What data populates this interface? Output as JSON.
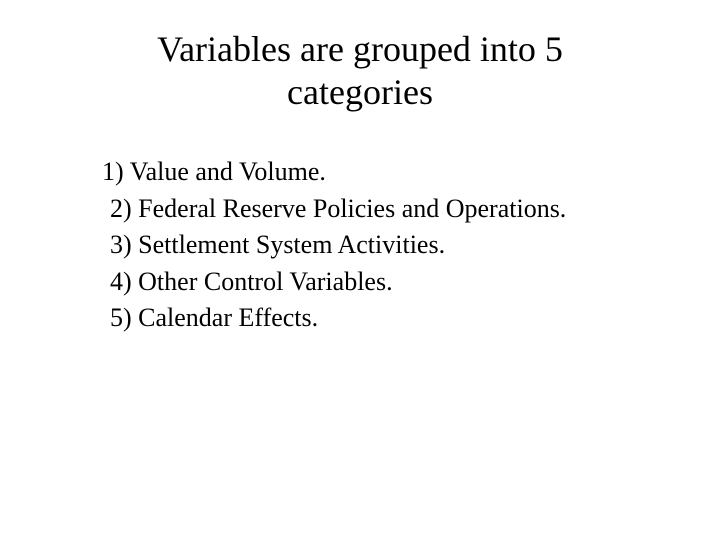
{
  "slide": {
    "title": "Variables are grouped into 5 categories",
    "title_fontsize": 36,
    "title_align": "center",
    "items": [
      "1) Value and Volume.",
      "2) Federal Reserve Policies and Operations.",
      "3) Settlement System Activities.",
      "4) Other Control Variables.",
      "5) Calendar Effects."
    ],
    "item_fontsize": 26,
    "font_family": "Times New Roman",
    "background_color": "#ffffff",
    "text_color": "#000000"
  }
}
